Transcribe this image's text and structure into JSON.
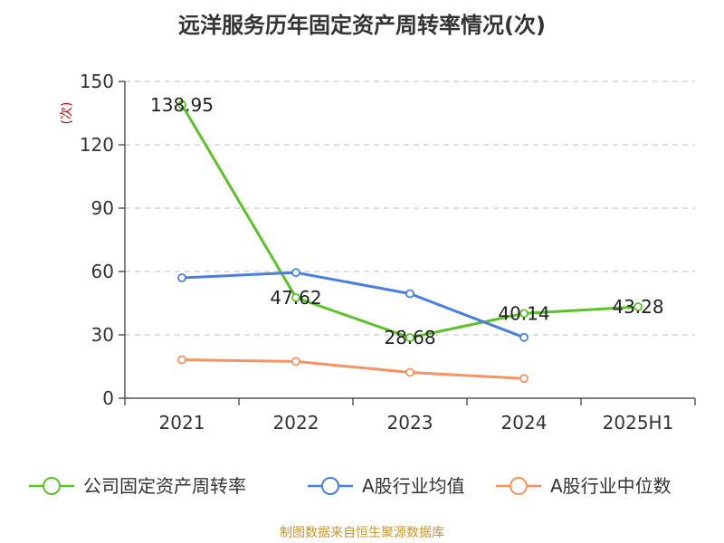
{
  "chart_data": {
    "type": "line",
    "title": "远洋服务历年固定资产周转率情况(次)",
    "ylabel": "(次)",
    "xlabel": "",
    "categories": [
      "2021",
      "2022",
      "2023",
      "2024",
      "2025H1"
    ],
    "ylim": [
      0,
      150
    ],
    "yticks": [
      0,
      30,
      60,
      90,
      120,
      150
    ],
    "grid": true,
    "legend_position": "bottom",
    "series": [
      {
        "name": "公司固定资产周转率",
        "color": "#5cc22a",
        "values": [
          138.95,
          47.62,
          28.68,
          40.14,
          43.28
        ],
        "data_labels": [
          "138.95",
          "47.62",
          "28.68",
          "40.14",
          "43.28"
        ]
      },
      {
        "name": "A股行业均值",
        "color": "#4a7fe0",
        "values": [
          57.0,
          59.5,
          49.5,
          28.8,
          null
        ]
      },
      {
        "name": "A股行业中位数",
        "color": "#f59460",
        "values": [
          18.2,
          17.4,
          12.2,
          9.3,
          null
        ]
      }
    ],
    "source": "制图数据来自恒生聚源数据库"
  }
}
